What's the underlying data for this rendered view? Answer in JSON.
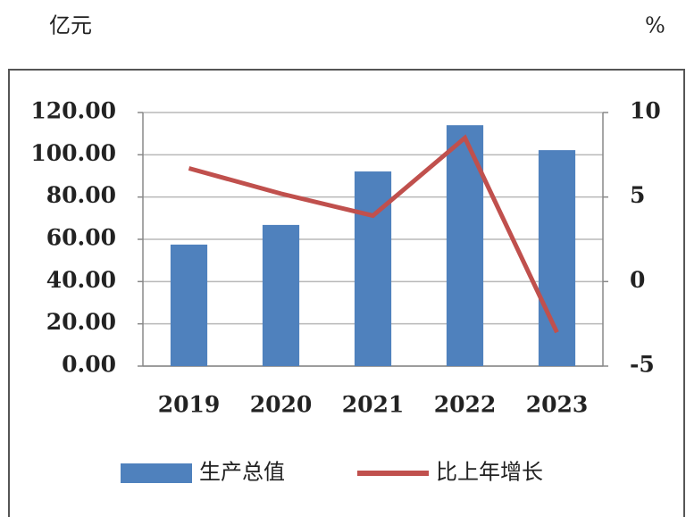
{
  "chart_data": {
    "type": "bar_line",
    "y_label": "亿元",
    "y2_label": "%",
    "categories": [
      "2019",
      "2020",
      "2021",
      "2022",
      "2023"
    ],
    "series": [
      {
        "name": "生产总值",
        "type": "bar",
        "color": "#4f81bd",
        "values": [
          57.5,
          66.8,
          92.1,
          114,
          102.2
        ]
      },
      {
        "name": "比上年增长",
        "type": "line",
        "axis": "y2",
        "color": "#c0504d",
        "values": [
          6.7,
          5.2,
          3.9,
          8.5,
          -3.0
        ]
      }
    ],
    "ylim": [
      0,
      120
    ],
    "yticks": [
      {
        "value": 0,
        "label": "0.00"
      },
      {
        "value": 20,
        "label": "20.00"
      },
      {
        "value": 40,
        "label": "40.00"
      },
      {
        "value": 60,
        "label": "60.00"
      },
      {
        "value": 80,
        "label": "80.00"
      },
      {
        "value": 100,
        "label": "100.00"
      },
      {
        "value": 120,
        "label": "120.00"
      }
    ],
    "y2lim": [
      -5,
      10
    ],
    "y2ticks": [
      -5,
      0,
      5,
      10
    ],
    "grid": true,
    "legend": "bottom"
  }
}
